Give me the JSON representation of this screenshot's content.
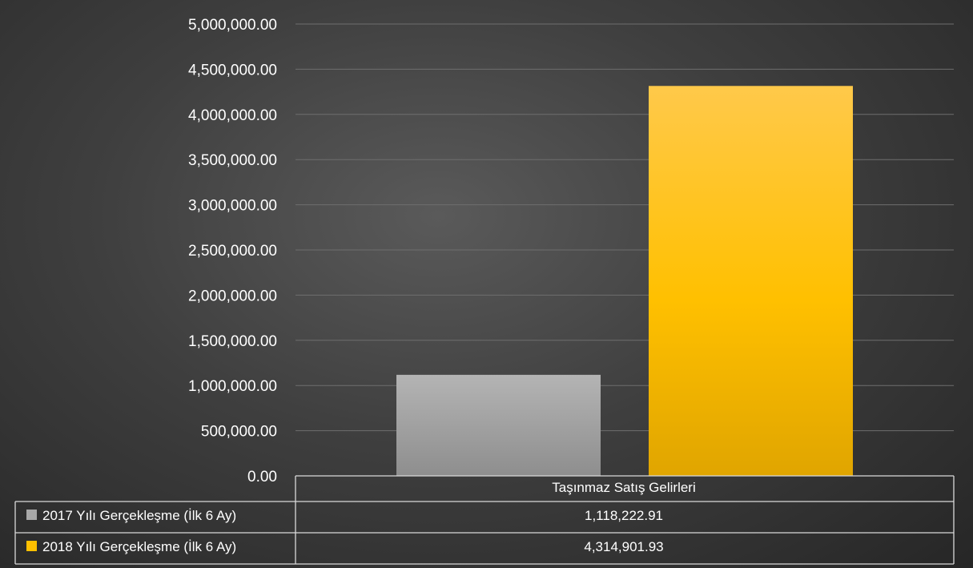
{
  "chart_data": {
    "type": "bar",
    "categories": [
      "Taşınmaz Satış Gelirleri"
    ],
    "series": [
      {
        "name": "2017 Yılı Gerçekleşme (İlk 6 Ay)",
        "values": [
          1118222.91
        ],
        "value_labels": [
          "1,118,222.91"
        ],
        "color": "#a8a8a8"
      },
      {
        "name": "2018 Yılı Gerçekleşme (İlk 6 Ay)",
        "values": [
          4314901.93
        ],
        "value_labels": [
          "4,314,901.93"
        ],
        "color": "#ffc000"
      }
    ],
    "ylim": [
      0,
      5000000
    ],
    "yticks": [
      0,
      500000,
      1000000,
      1500000,
      2000000,
      2500000,
      3000000,
      3500000,
      4000000,
      4500000,
      5000000
    ],
    "ytick_labels": [
      "0.00",
      "500,000.00",
      "1,000,000.00",
      "1,500,000.00",
      "2,000,000.00",
      "2,500,000.00",
      "3,000,000.00",
      "3,500,000.00",
      "4,000,000.00",
      "4,500,000.00",
      "5,000,000.00"
    ],
    "grid": true,
    "legend": "data-table-below"
  }
}
